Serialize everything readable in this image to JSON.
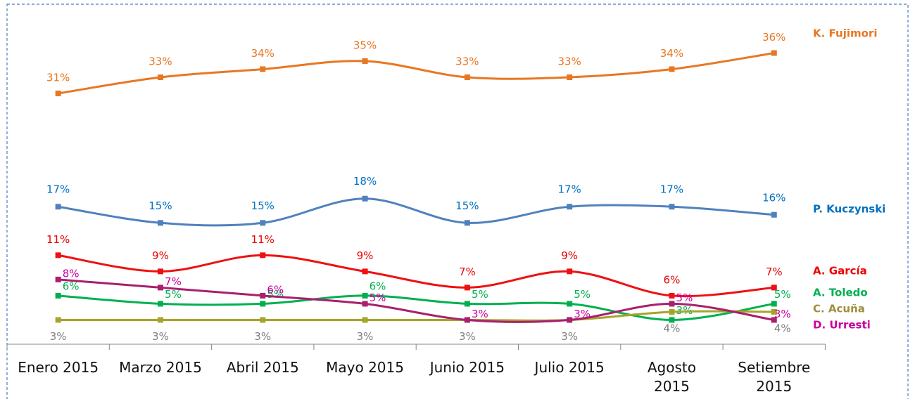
{
  "chart_data": {
    "type": "line",
    "categories": [
      "Enero 2015",
      "Marzo 2015",
      "Abril 2015",
      "Mayo 2015",
      "Junio 2015",
      "Julio 2015",
      "Agosto 2015",
      "Setiembre 2015"
    ],
    "ylim": [
      0,
      40
    ],
    "series": [
      {
        "name": "K. Fujimori",
        "color": "#e87722",
        "label_color": "#e87722",
        "values": [
          31,
          33,
          34,
          35,
          33,
          33,
          34,
          36
        ],
        "value_labels": [
          "31%",
          "33%",
          "34%",
          "35%",
          "33%",
          "33%",
          "34%",
          "36%"
        ]
      },
      {
        "name": "P. Kuczynski",
        "color": "#4f81bd",
        "label_color": "#0070c0",
        "values": [
          17,
          15,
          15,
          18,
          15,
          17,
          17,
          16
        ],
        "value_labels": [
          "17%",
          "15%",
          "15%",
          "18%",
          "15%",
          "17%",
          "17%",
          "16%"
        ]
      },
      {
        "name": "A. García",
        "color": "#ee1111",
        "label_color": "#ee0000",
        "values": [
          11,
          9,
          11,
          9,
          7,
          9,
          6,
          7
        ],
        "value_labels": [
          "11%",
          "9%",
          "11%",
          "9%",
          "7%",
          "9%",
          "6%",
          "7%"
        ]
      },
      {
        "name": "A. Toledo",
        "color": "#00b050",
        "label_color": "#00b050",
        "values": [
          6,
          5,
          5,
          6,
          5,
          5,
          3,
          5
        ],
        "value_labels": [
          "6%",
          "5%",
          "5%",
          "6%",
          "5%",
          "5%",
          "3%",
          "5%"
        ]
      },
      {
        "name": "C. Acuña",
        "color": "#a5a52a",
        "label_color": "#808080",
        "values": [
          3,
          3,
          3,
          3,
          3,
          3,
          4,
          4
        ],
        "value_labels": [
          "3%",
          "3%",
          "3%",
          "3%",
          "3%",
          "3%",
          "4%",
          "4%"
        ]
      },
      {
        "name": "D. Urresti",
        "color": "#a8206e",
        "label_color": "#cc00a0",
        "values": [
          8,
          7,
          6,
          5,
          3,
          3,
          5,
          3
        ],
        "value_labels": [
          "8%",
          "7%",
          "6%",
          "5%",
          "3%",
          "3%",
          "5%",
          "3%"
        ]
      }
    ]
  }
}
